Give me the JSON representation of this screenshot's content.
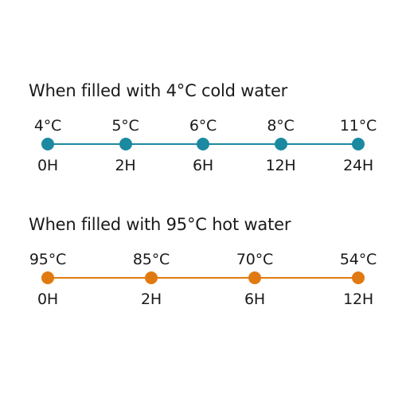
{
  "cold": {
    "title": "When filled with 4°C cold water",
    "color": "#1b8aa0",
    "points": [
      {
        "temp": "4°C",
        "time": "0H"
      },
      {
        "temp": "5°C",
        "time": "2H"
      },
      {
        "temp": "6°C",
        "time": "6H"
      },
      {
        "temp": "8°C",
        "time": "12H"
      },
      {
        "temp": "11°C",
        "time": "24H"
      }
    ]
  },
  "hot": {
    "title": "When filled with 95°C hot water",
    "color": "#e07a10",
    "points": [
      {
        "temp": "95°C",
        "time": "0H"
      },
      {
        "temp": "85°C",
        "time": "2H"
      },
      {
        "temp": "70°C",
        "time": "6H"
      },
      {
        "temp": "54°C",
        "time": "12H"
      }
    ]
  }
}
